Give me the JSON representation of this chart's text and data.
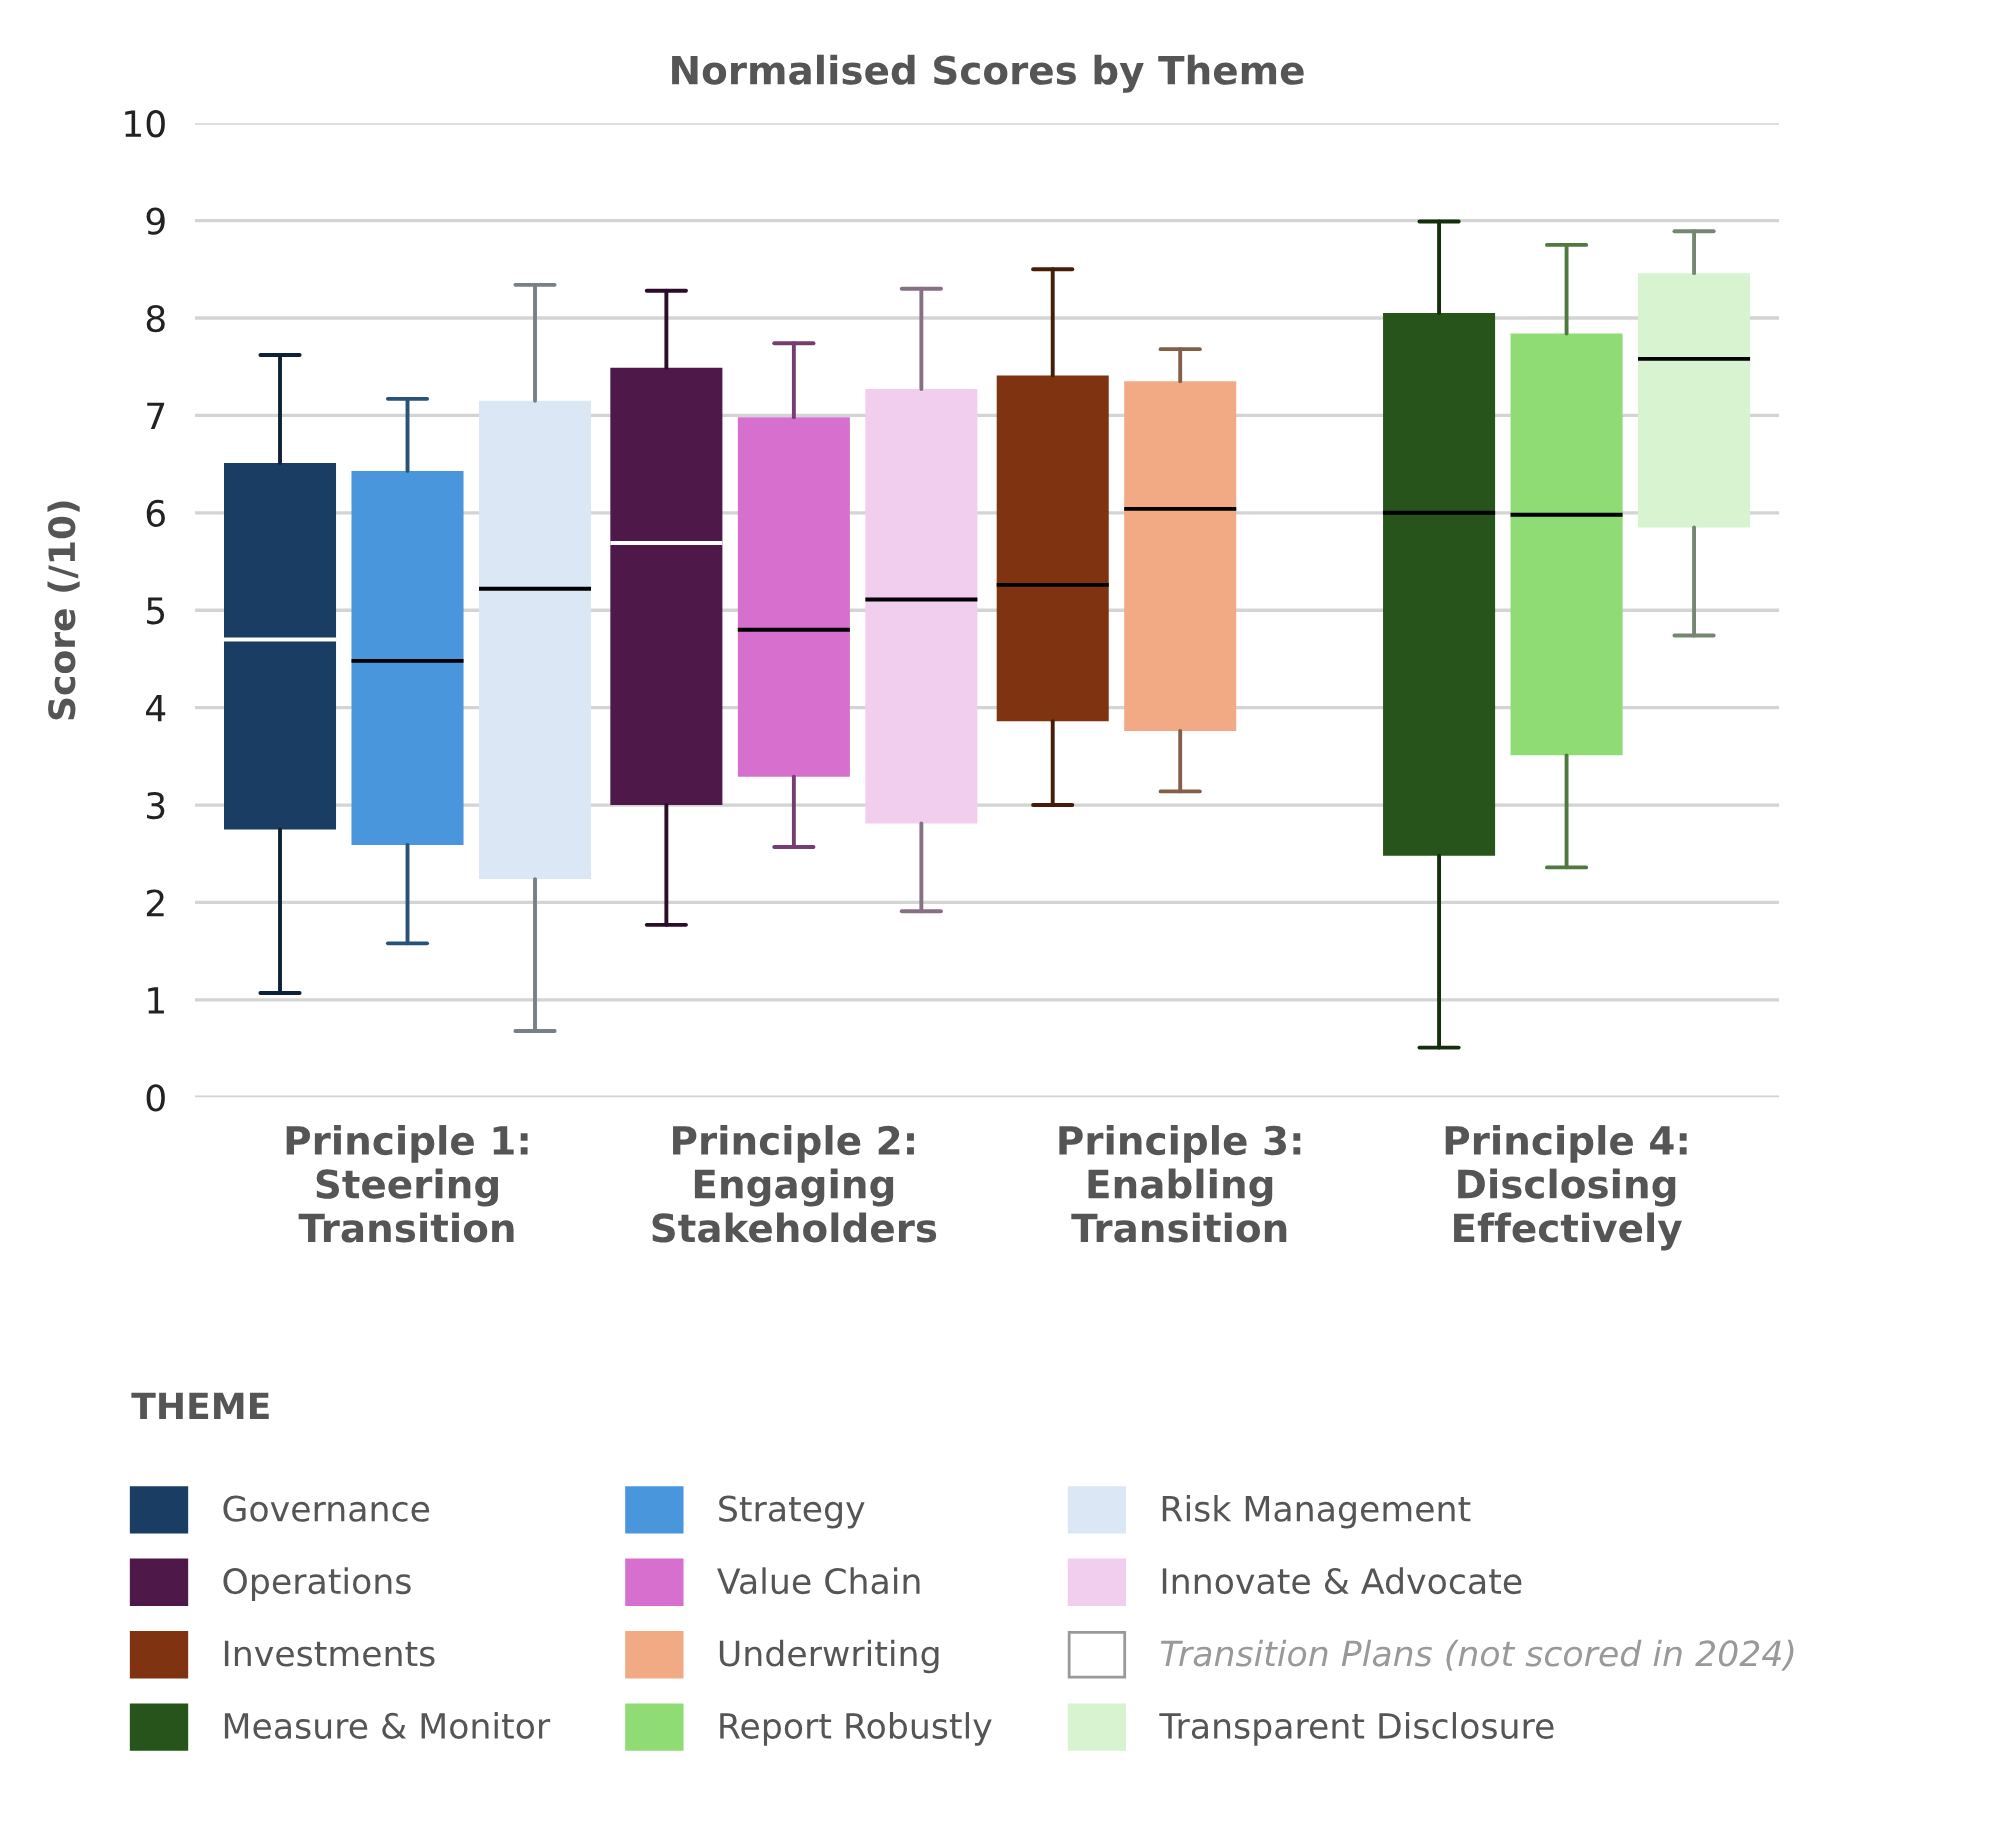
{
  "chart_data": {
    "type": "box",
    "title": "Normalised Scores by Theme",
    "ylabel": "Score (/10)",
    "legend_title": "THEME",
    "legend": "bottom",
    "grid": "y",
    "categories": [
      "Principle 1:\nSteering\nTransition",
      "Principle 2:\nEngaging\nStakeholders",
      "Principle 3:\nEnabling\nTransition",
      "Principle 4:\nDisclosing\nEffectively"
    ],
    "ylim": [
      0,
      10
    ],
    "yticks": [
      0,
      1,
      2,
      3,
      4,
      5,
      6,
      7,
      8,
      9,
      10
    ],
    "series": [
      {
        "name": "Governance",
        "color": "#1a3d63",
        "boxes": [
          {
            "low": 1.07,
            "q1": 2.75,
            "median": 4.7,
            "q3": 6.51,
            "high": 7.62
          },
          null,
          null,
          null
        ]
      },
      {
        "name": "Strategy",
        "color": "#4a96dc",
        "boxes": [
          {
            "low": 1.58,
            "q1": 2.59,
            "median": 4.48,
            "q3": 6.43,
            "high": 7.17
          },
          null,
          null,
          null
        ]
      },
      {
        "name": "Risk Management",
        "color": "#dbe7f5",
        "boxes": [
          {
            "low": 0.68,
            "q1": 2.24,
            "median": 5.22,
            "q3": 7.15,
            "high": 8.34
          },
          null,
          null,
          null
        ]
      },
      {
        "name": "Operations",
        "color": "#4e1848",
        "boxes": [
          null,
          {
            "low": 1.77,
            "q1": 3.0,
            "median": 5.69,
            "q3": 7.49,
            "high": 8.28
          },
          null,
          null
        ]
      },
      {
        "name": "Value Chain",
        "color": "#d66fce",
        "boxes": [
          null,
          {
            "low": 2.57,
            "q1": 3.29,
            "median": 4.8,
            "q3": 6.98,
            "high": 7.74
          },
          null,
          null
        ]
      },
      {
        "name": "Innovate & Advocate",
        "color": "#f1cdee",
        "boxes": [
          null,
          {
            "low": 1.91,
            "q1": 2.81,
            "median": 5.11,
            "q3": 7.27,
            "high": 8.3
          },
          null,
          null
        ]
      },
      {
        "name": "Investments",
        "color": "#7f3310",
        "boxes": [
          null,
          null,
          {
            "low": 3.0,
            "q1": 3.86,
            "median": 5.26,
            "q3": 7.41,
            "high": 8.5
          },
          null
        ]
      },
      {
        "name": "Underwriting",
        "color": "#f2aa84",
        "boxes": [
          null,
          null,
          {
            "low": 3.14,
            "q1": 3.76,
            "median": 6.04,
            "q3": 7.35,
            "high": 7.68
          },
          null
        ]
      },
      {
        "name": "Transition Plans (not scored in 2024)",
        "color": "#ffffff",
        "boxes": [
          null,
          null,
          null,
          null
        ]
      },
      {
        "name": "Measure & Monitor",
        "color": "#27541a",
        "boxes": [
          null,
          null,
          null,
          {
            "low": 0.51,
            "q1": 2.48,
            "median": 6.0,
            "q3": 8.05,
            "high": 8.99
          }
        ]
      },
      {
        "name": "Report Robustly",
        "color": "#8fdc74",
        "boxes": [
          null,
          null,
          null,
          {
            "low": 2.36,
            "q1": 3.51,
            "median": 5.98,
            "q3": 7.84,
            "high": 8.75
          }
        ]
      },
      {
        "name": "Transparent Disclosure",
        "color": "#d8f3d0",
        "boxes": [
          null,
          null,
          null,
          {
            "low": 4.74,
            "q1": 5.85,
            "median": 7.58,
            "q3": 8.46,
            "high": 8.89
          }
        ]
      }
    ]
  }
}
